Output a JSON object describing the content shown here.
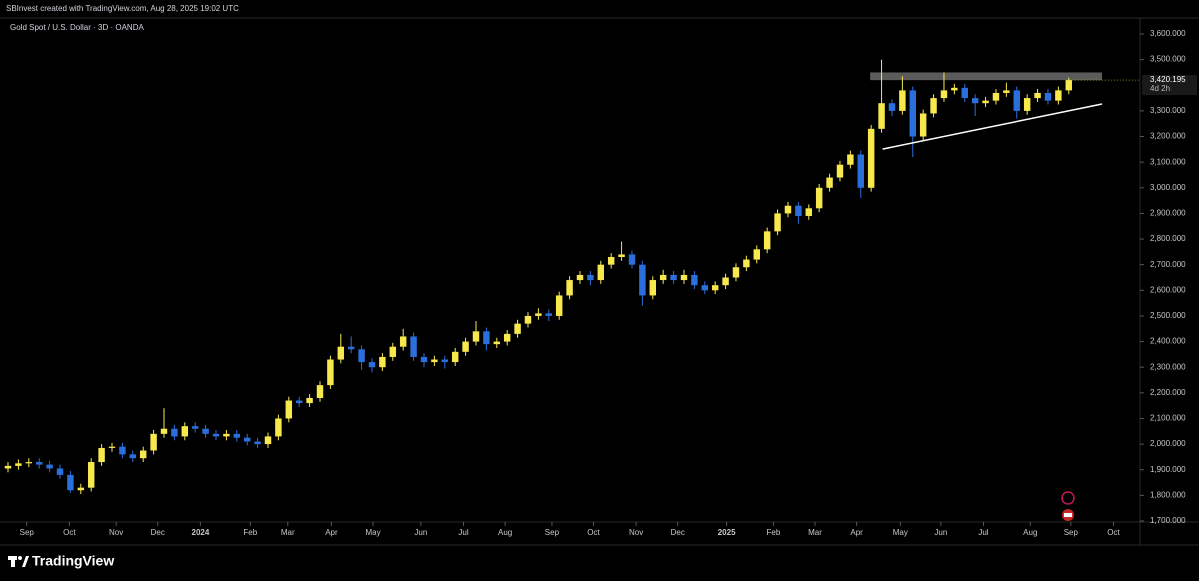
{
  "header": {
    "credit": "SBInvest created with TradingView.com, Aug 28, 2025 19:02 UTC"
  },
  "footer": {
    "brand": "TradingView"
  },
  "chart_data": {
    "type": "candlestick",
    "title": "Gold Spot / U.S. Dollar · 3D · OANDA",
    "up_color": "#f7e84e",
    "down_color": "#2a6fdb",
    "ohlc": [
      [
        1905,
        1930,
        1890,
        1915
      ],
      [
        1915,
        1940,
        1900,
        1925
      ],
      [
        1925,
        1945,
        1910,
        1930
      ],
      [
        1930,
        1945,
        1905,
        1920
      ],
      [
        1920,
        1935,
        1890,
        1905
      ],
      [
        1905,
        1920,
        1865,
        1880
      ],
      [
        1880,
        1895,
        1810,
        1820
      ],
      [
        1820,
        1845,
        1805,
        1830
      ],
      [
        1830,
        1945,
        1815,
        1930
      ],
      [
        1930,
        2000,
        1915,
        1985
      ],
      [
        1985,
        2005,
        1970,
        1990
      ],
      [
        1990,
        2005,
        1945,
        1960
      ],
      [
        1960,
        1975,
        1930,
        1945
      ],
      [
        1945,
        1990,
        1930,
        1975
      ],
      [
        1975,
        2055,
        1960,
        2040
      ],
      [
        2040,
        2140,
        2025,
        2060
      ],
      [
        2060,
        2075,
        2015,
        2030
      ],
      [
        2030,
        2085,
        2015,
        2070
      ],
      [
        2070,
        2085,
        2045,
        2060
      ],
      [
        2060,
        2075,
        2025,
        2040
      ],
      [
        2040,
        2055,
        2015,
        2030
      ],
      [
        2030,
        2055,
        2015,
        2040
      ],
      [
        2040,
        2055,
        2010,
        2025
      ],
      [
        2025,
        2040,
        1995,
        2010
      ],
      [
        2010,
        2025,
        1985,
        2000
      ],
      [
        2000,
        2045,
        1985,
        2030
      ],
      [
        2030,
        2115,
        2015,
        2100
      ],
      [
        2100,
        2185,
        2085,
        2170
      ],
      [
        2170,
        2185,
        2145,
        2160
      ],
      [
        2160,
        2195,
        2145,
        2180
      ],
      [
        2180,
        2245,
        2165,
        2230
      ],
      [
        2230,
        2345,
        2215,
        2330
      ],
      [
        2330,
        2430,
        2315,
        2380
      ],
      [
        2380,
        2420,
        2355,
        2370
      ],
      [
        2370,
        2385,
        2290,
        2320
      ],
      [
        2320,
        2335,
        2280,
        2300
      ],
      [
        2300,
        2355,
        2285,
        2340
      ],
      [
        2340,
        2395,
        2325,
        2380
      ],
      [
        2380,
        2450,
        2365,
        2420
      ],
      [
        2420,
        2435,
        2325,
        2340
      ],
      [
        2340,
        2355,
        2300,
        2320
      ],
      [
        2320,
        2345,
        2305,
        2330
      ],
      [
        2330,
        2345,
        2295,
        2320
      ],
      [
        2320,
        2375,
        2305,
        2360
      ],
      [
        2360,
        2415,
        2345,
        2400
      ],
      [
        2400,
        2480,
        2385,
        2440
      ],
      [
        2440,
        2455,
        2365,
        2390
      ],
      [
        2390,
        2415,
        2375,
        2400
      ],
      [
        2400,
        2445,
        2385,
        2430
      ],
      [
        2430,
        2485,
        2415,
        2470
      ],
      [
        2470,
        2515,
        2455,
        2500
      ],
      [
        2500,
        2530,
        2485,
        2510
      ],
      [
        2510,
        2525,
        2480,
        2500
      ],
      [
        2500,
        2595,
        2485,
        2580
      ],
      [
        2580,
        2655,
        2565,
        2640
      ],
      [
        2640,
        2675,
        2625,
        2660
      ],
      [
        2660,
        2675,
        2620,
        2640
      ],
      [
        2640,
        2715,
        2625,
        2700
      ],
      [
        2700,
        2745,
        2685,
        2730
      ],
      [
        2730,
        2790,
        2715,
        2740
      ],
      [
        2740,
        2755,
        2685,
        2700
      ],
      [
        2700,
        2715,
        2540,
        2580
      ],
      [
        2580,
        2655,
        2565,
        2640
      ],
      [
        2640,
        2680,
        2625,
        2660
      ],
      [
        2660,
        2675,
        2625,
        2640
      ],
      [
        2640,
        2680,
        2625,
        2660
      ],
      [
        2660,
        2675,
        2605,
        2620
      ],
      [
        2620,
        2635,
        2585,
        2600
      ],
      [
        2600,
        2635,
        2585,
        2620
      ],
      [
        2620,
        2665,
        2605,
        2650
      ],
      [
        2650,
        2705,
        2635,
        2690
      ],
      [
        2690,
        2735,
        2675,
        2720
      ],
      [
        2720,
        2775,
        2705,
        2760
      ],
      [
        2760,
        2845,
        2745,
        2830
      ],
      [
        2830,
        2915,
        2815,
        2900
      ],
      [
        2900,
        2945,
        2885,
        2930
      ],
      [
        2930,
        2945,
        2860,
        2890
      ],
      [
        2890,
        2935,
        2875,
        2920
      ],
      [
        2920,
        3015,
        2905,
        3000
      ],
      [
        3000,
        3055,
        2985,
        3040
      ],
      [
        3040,
        3105,
        3025,
        3090
      ],
      [
        3090,
        3145,
        3075,
        3130
      ],
      [
        3130,
        3145,
        2960,
        3000
      ],
      [
        3000,
        3245,
        2985,
        3230
      ],
      [
        3230,
        3500,
        3215,
        3330
      ],
      [
        3330,
        3345,
        3280,
        3300
      ],
      [
        3300,
        3435,
        3285,
        3380
      ],
      [
        3380,
        3395,
        3120,
        3200
      ],
      [
        3200,
        3305,
        3185,
        3290
      ],
      [
        3290,
        3365,
        3275,
        3350
      ],
      [
        3350,
        3450,
        3335,
        3380
      ],
      [
        3380,
        3405,
        3365,
        3390
      ],
      [
        3390,
        3405,
        3335,
        3350
      ],
      [
        3350,
        3365,
        3280,
        3330
      ],
      [
        3330,
        3355,
        3315,
        3340
      ],
      [
        3340,
        3385,
        3325,
        3370
      ],
      [
        3370,
        3410,
        3355,
        3380
      ],
      [
        3380,
        3395,
        3270,
        3300
      ],
      [
        3300,
        3365,
        3285,
        3350
      ],
      [
        3350,
        3385,
        3335,
        3370
      ],
      [
        3370,
        3385,
        3325,
        3340
      ],
      [
        3340,
        3395,
        3325,
        3380
      ],
      [
        3380,
        3430,
        3365,
        3420.195
      ]
    ],
    "last_price_label": "3,420.195",
    "countdown": "4d 2h",
    "xlim": [
      -0.77,
      108.85
    ],
    "xticks": [
      {
        "value": 1.8,
        "label": "Sep"
      },
      {
        "value": 5.9,
        "label": "Oct"
      },
      {
        "value": 10.4,
        "label": "Nov"
      },
      {
        "value": 14.4,
        "label": "Dec"
      },
      {
        "value": 18.5,
        "label": "2024"
      },
      {
        "value": 23.3,
        "label": "Feb"
      },
      {
        "value": 26.9,
        "label": "Mar"
      },
      {
        "value": 31.1,
        "label": "Apr"
      },
      {
        "value": 35.1,
        "label": "May"
      },
      {
        "value": 39.7,
        "label": "Jun"
      },
      {
        "value": 43.8,
        "label": "Jul"
      },
      {
        "value": 47.8,
        "label": "Aug"
      },
      {
        "value": 52.3,
        "label": "Sep"
      },
      {
        "value": 56.3,
        "label": "Oct"
      },
      {
        "value": 60.4,
        "label": "Nov"
      },
      {
        "value": 64.4,
        "label": "Dec"
      },
      {
        "value": 69.1,
        "label": "2025"
      },
      {
        "value": 73.6,
        "label": "Feb"
      },
      {
        "value": 77.6,
        "label": "Mar"
      },
      {
        "value": 81.6,
        "label": "Apr"
      },
      {
        "value": 85.8,
        "label": "May"
      },
      {
        "value": 89.7,
        "label": "Jun"
      },
      {
        "value": 93.8,
        "label": "Jul"
      },
      {
        "value": 98.3,
        "label": "Aug"
      },
      {
        "value": 102.2,
        "label": "Sep"
      },
      {
        "value": 106.3,
        "label": "Oct"
      }
    ],
    "ylim": [
      1700,
      3600
    ],
    "yticks": [
      {
        "value": 1700,
        "label": "1,700.000"
      },
      {
        "value": 1800,
        "label": "1,800.000"
      },
      {
        "value": 1900,
        "label": "1,900.000"
      },
      {
        "value": 2000,
        "label": "2,000.000"
      },
      {
        "value": 2100,
        "label": "2,100.000"
      },
      {
        "value": 2200,
        "label": "2,200.000"
      },
      {
        "value": 2300,
        "label": "2,300.000"
      },
      {
        "value": 2400,
        "label": "2,400.000"
      },
      {
        "value": 2500,
        "label": "2,500.000"
      },
      {
        "value": 2600,
        "label": "2,600.000"
      },
      {
        "value": 2700,
        "label": "2,700.000"
      },
      {
        "value": 2800,
        "label": "2,800.000"
      },
      {
        "value": 2900,
        "label": "2,900.000"
      },
      {
        "value": 3000,
        "label": "3,000.000"
      },
      {
        "value": 3100,
        "label": "3,100.000"
      },
      {
        "value": 3200,
        "label": "3,200.000"
      },
      {
        "value": 3300,
        "label": "3,300.000"
      },
      {
        "value": 3500,
        "label": "3,500.000"
      },
      {
        "value": 3600,
        "label": "3,600.000"
      }
    ],
    "drawings": {
      "resistance_zone": {
        "x": [
          82.9,
          105.2
        ],
        "y": [
          3420,
          3450
        ],
        "color": "#6b6b6b"
      },
      "trendline": {
        "x": [
          84.1,
          105.2
        ],
        "y": [
          3151,
          3327
        ],
        "color": "#ffffff"
      }
    }
  }
}
